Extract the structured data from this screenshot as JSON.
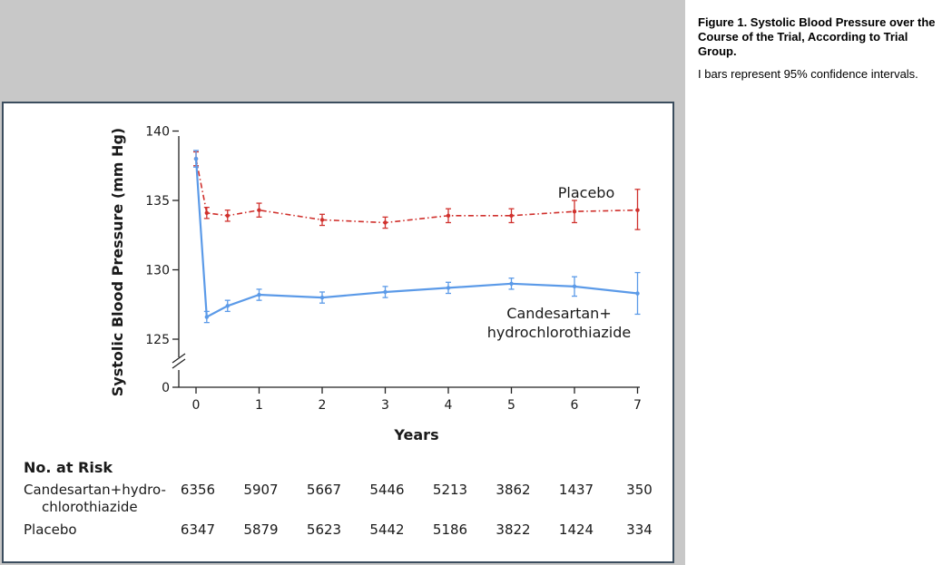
{
  "caption": {
    "title": "Figure 1. Systolic Blood Pressure over the Course of the Trial, According to Trial Group.",
    "text": "I bars represent 95% confidence intervals."
  },
  "colors": {
    "placebo": "#d0312d",
    "treatment": "#5b9ae8",
    "frame": "#3b4d5e",
    "panel": "#c8c8c8"
  },
  "chart_data": {
    "type": "line",
    "title": "",
    "xlabel": "Years",
    "ylabel": "Systolic Blood Pressure (mm Hg)",
    "xlim": [
      0,
      7
    ],
    "ylim": [
      124,
      140
    ],
    "y_axis_break": true,
    "x_ticks": [
      "0",
      "1",
      "2",
      "3",
      "4",
      "5",
      "6",
      "7"
    ],
    "y_ticks": [
      "0",
      "125",
      "130",
      "135",
      "140"
    ],
    "y_tick_values": [
      125,
      130,
      135,
      140
    ],
    "grid": false,
    "series": [
      {
        "name": "Placebo",
        "line_style": "dash-dot",
        "x": [
          0,
          0.17,
          0.5,
          1,
          2,
          3,
          4,
          5,
          6,
          7
        ],
        "y": [
          138.0,
          134.1,
          133.9,
          134.3,
          133.6,
          133.4,
          133.9,
          133.9,
          134.2,
          134.3
        ],
        "ci_low": [
          137.5,
          133.7,
          133.5,
          133.8,
          133.2,
          133.0,
          133.4,
          133.4,
          133.4,
          132.9
        ],
        "ci_high": [
          138.5,
          134.5,
          134.3,
          134.8,
          134.0,
          133.8,
          134.4,
          134.4,
          135.0,
          135.8
        ]
      },
      {
        "name": "Candesartan+ hydrochlorothiazide",
        "label_lines": [
          "Candesartan+",
          "hydrochlorothiazide"
        ],
        "line_style": "solid",
        "x": [
          0,
          0.17,
          0.5,
          1,
          2,
          3,
          4,
          5,
          6,
          7
        ],
        "y": [
          138.0,
          126.6,
          127.4,
          128.2,
          128.0,
          128.4,
          128.7,
          129.0,
          128.8,
          128.3
        ],
        "ci_low": [
          137.4,
          126.2,
          127.0,
          127.8,
          127.6,
          128.0,
          128.3,
          128.6,
          128.1,
          126.8
        ],
        "ci_high": [
          138.6,
          127.0,
          127.8,
          128.6,
          128.4,
          128.8,
          129.1,
          129.4,
          129.5,
          129.8
        ]
      }
    ],
    "at_risk": {
      "heading": "No. at Risk",
      "rows": [
        {
          "label_lines": [
            "Candesartan+hydro-",
            "chlorothiazide"
          ],
          "values": [
            "6356",
            "5907",
            "5667",
            "5446",
            "5213",
            "3862",
            "1437",
            "350"
          ]
        },
        {
          "label_lines": [
            "Placebo"
          ],
          "values": [
            "6347",
            "5879",
            "5623",
            "5442",
            "5186",
            "3822",
            "1424",
            "334"
          ]
        }
      ]
    }
  }
}
